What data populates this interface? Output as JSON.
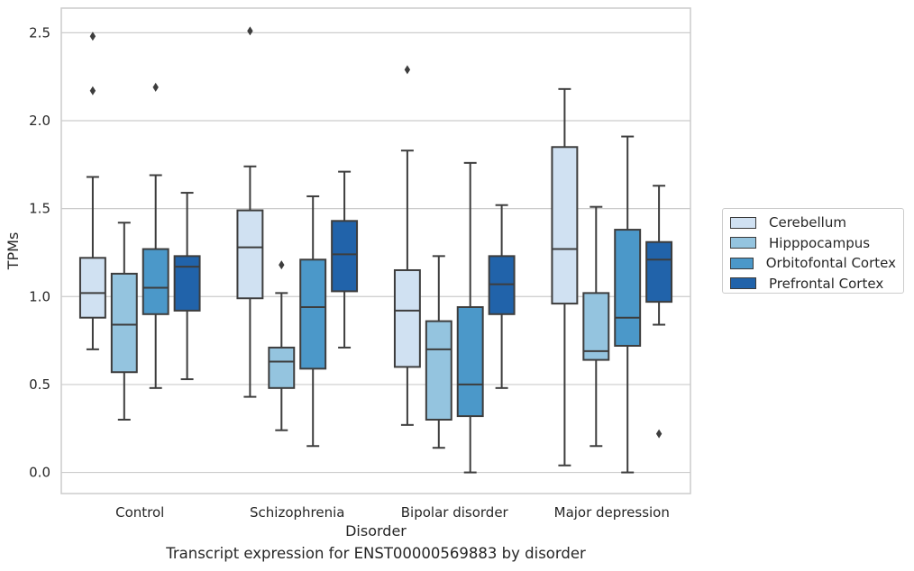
{
  "chart_data": {
    "type": "box",
    "caption": "Transcript expression for ENST00000569883 by disorder",
    "xlabel": "Disorder",
    "ylabel": "TPMs",
    "ylim": [
      -0.12,
      2.64
    ],
    "yticks": [
      "0.0",
      "0.5",
      "1.0",
      "1.5",
      "2.0",
      "2.5"
    ],
    "grid": true,
    "legend_position": "right",
    "categories": [
      "Control",
      "Schizophrenia",
      "Bipolar disorder",
      "Major depression"
    ],
    "series": [
      {
        "name": "Cerebellum",
        "color": "#d0e1f2",
        "boxes": [
          {
            "whislo": 0.7,
            "q1": 0.88,
            "med": 1.02,
            "q3": 1.22,
            "whishi": 1.68,
            "fliers": [
              2.17,
              2.48
            ]
          },
          {
            "whislo": 0.43,
            "q1": 0.99,
            "med": 1.28,
            "q3": 1.49,
            "whishi": 1.74,
            "fliers": [
              2.51
            ]
          },
          {
            "whislo": 0.27,
            "q1": 0.6,
            "med": 0.92,
            "q3": 1.15,
            "whishi": 1.83,
            "fliers": [
              2.29
            ]
          },
          {
            "whislo": 0.04,
            "q1": 0.96,
            "med": 1.27,
            "q3": 1.85,
            "whishi": 2.18,
            "fliers": []
          }
        ]
      },
      {
        "name": "Hipppocampus",
        "color": "#94c4df",
        "boxes": [
          {
            "whislo": 0.3,
            "q1": 0.57,
            "med": 0.84,
            "q3": 1.13,
            "whishi": 1.42,
            "fliers": []
          },
          {
            "whislo": 0.24,
            "q1": 0.48,
            "med": 0.63,
            "q3": 0.71,
            "whishi": 1.02,
            "fliers": [
              1.18
            ]
          },
          {
            "whislo": 0.14,
            "q1": 0.3,
            "med": 0.7,
            "q3": 0.86,
            "whishi": 1.23,
            "fliers": []
          },
          {
            "whislo": 0.15,
            "q1": 0.64,
            "med": 0.69,
            "q3": 1.02,
            "whishi": 1.51,
            "fliers": []
          }
        ]
      },
      {
        "name": "Orbitofontal Cortex",
        "color": "#4b98c9",
        "boxes": [
          {
            "whislo": 0.48,
            "q1": 0.9,
            "med": 1.05,
            "q3": 1.27,
            "whishi": 1.69,
            "fliers": [
              2.19
            ]
          },
          {
            "whislo": 0.15,
            "q1": 0.59,
            "med": 0.94,
            "q3": 1.21,
            "whishi": 1.57,
            "fliers": []
          },
          {
            "whislo": 0.0,
            "q1": 0.32,
            "med": 0.5,
            "q3": 0.94,
            "whishi": 1.76,
            "fliers": []
          },
          {
            "whislo": 0.0,
            "q1": 0.72,
            "med": 0.88,
            "q3": 1.38,
            "whishi": 1.91,
            "fliers": []
          }
        ]
      },
      {
        "name": "Prefrontal Cortex",
        "color": "#2163aa",
        "boxes": [
          {
            "whislo": 0.53,
            "q1": 0.92,
            "med": 1.17,
            "q3": 1.23,
            "whishi": 1.59,
            "fliers": []
          },
          {
            "whislo": 0.71,
            "q1": 1.03,
            "med": 1.24,
            "q3": 1.43,
            "whishi": 1.71,
            "fliers": []
          },
          {
            "whislo": 0.48,
            "q1": 0.9,
            "med": 1.07,
            "q3": 1.23,
            "whishi": 1.52,
            "fliers": []
          },
          {
            "whislo": 0.84,
            "q1": 0.97,
            "med": 1.21,
            "q3": 1.31,
            "whishi": 1.63,
            "fliers": [
              0.22
            ]
          }
        ]
      }
    ]
  }
}
